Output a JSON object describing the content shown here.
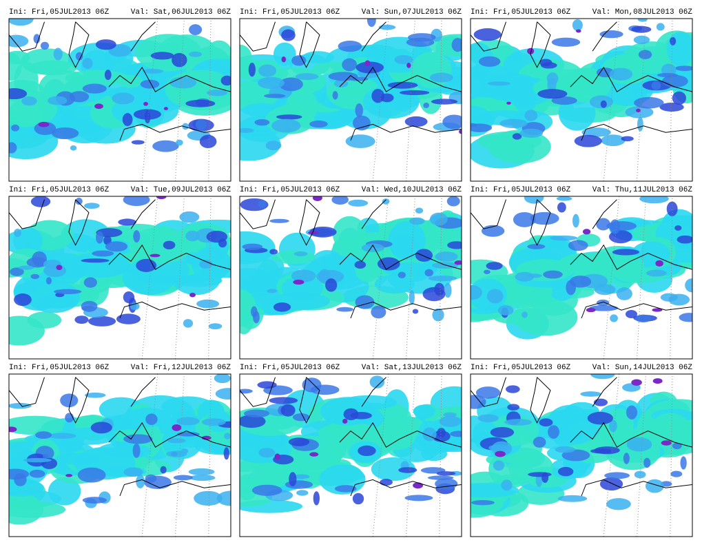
{
  "panels": [
    {
      "init": "Ini: Fri,05JUL2013 06Z",
      "valid": "Val: Sat,06JUL2013 06Z"
    },
    {
      "init": "Ini: Fri,05JUL2013 06Z",
      "valid": "Val: Sun,07JUL2013 06Z"
    },
    {
      "init": "Ini: Fri,05JUL2013 06Z",
      "valid": "Val: Mon,08JUL2013 06Z"
    },
    {
      "init": "Ini: Fri,05JUL2013 06Z",
      "valid": "Val: Tue,09JUL2013 06Z"
    },
    {
      "init": "Ini: Fri,05JUL2013 06Z",
      "valid": "Val: Wed,10JUL2013 06Z"
    },
    {
      "init": "Ini: Fri,05JUL2013 06Z",
      "valid": "Val: Thu,11JUL2013 06Z"
    },
    {
      "init": "Ini: Fri,05JUL2013 06Z",
      "valid": "Val: Fri,12JUL2013 06Z"
    },
    {
      "init": "Ini: Fri,05JUL2013 06Z",
      "valid": "Val: Sat,13JUL2013 06Z"
    },
    {
      "init": "Ini: Fri,05JUL2013 06Z",
      "valid": "Val: Sun,14JUL2013 06Z"
    }
  ]
}
